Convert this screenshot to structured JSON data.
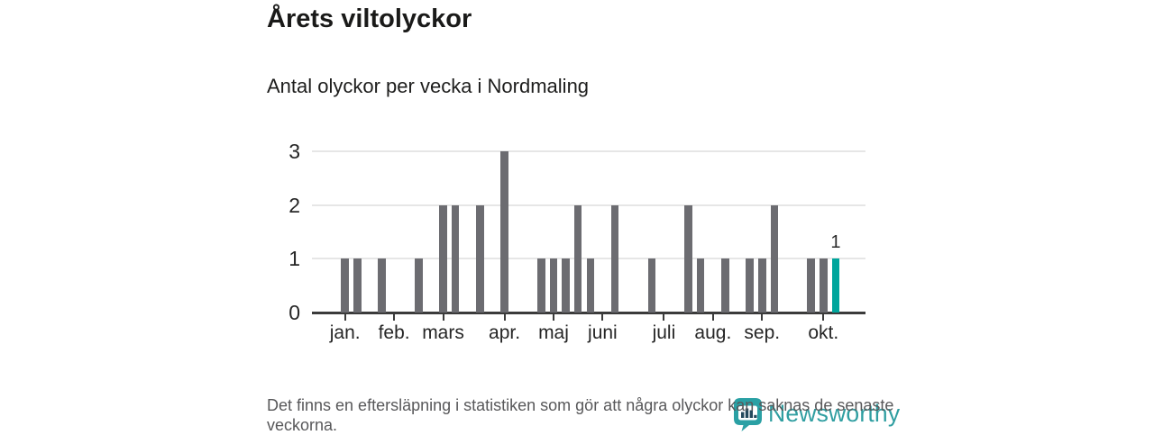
{
  "header": {
    "title": "Årets viltolyckor",
    "subtitle": "Antal olyckor per vecka i Nordmaling"
  },
  "footer": {
    "note": "Det finns en eftersläpning i statistiken som gör att några olyckor kan saknas de senaste veckorna."
  },
  "branding": {
    "name": "Newsworthy",
    "icon": "newsworthy-pin-barchart-logo",
    "text_color": "#2f9ea1",
    "icon_color": "#2aa0a4"
  },
  "chart_data": {
    "type": "bar",
    "title": "Årets viltolyckor",
    "subtitle": "Antal olyckor per vecka i Nordmaling",
    "x_unit": "vecka (week of year)",
    "weeks": [
      1,
      2,
      3,
      4,
      5,
      6,
      7,
      8,
      9,
      10,
      11,
      12,
      13,
      14,
      15,
      16,
      17,
      18,
      19,
      20,
      21,
      22,
      23,
      24,
      25,
      26,
      27,
      28,
      29,
      30,
      31,
      32,
      33,
      34,
      35,
      36,
      37,
      38,
      39,
      40,
      41
    ],
    "values": [
      1,
      1,
      0,
      1,
      0,
      0,
      1,
      0,
      2,
      2,
      0,
      2,
      0,
      3,
      0,
      0,
      1,
      1,
      1,
      2,
      1,
      0,
      2,
      0,
      0,
      1,
      0,
      0,
      2,
      1,
      0,
      1,
      0,
      1,
      1,
      2,
      0,
      0,
      1,
      1,
      1
    ],
    "highlight": {
      "week": 41,
      "value": 1,
      "label": "1"
    },
    "y_ticks": [
      0,
      1,
      2,
      3
    ],
    "ylim": [
      0,
      3
    ],
    "xlim_weeks": [
      1,
      43
    ],
    "grid": "horizontal",
    "legend": "none",
    "month_ticks": [
      {
        "label": "jan.",
        "week": 1
      },
      {
        "label": "feb.",
        "week": 5
      },
      {
        "label": "mars",
        "week": 9
      },
      {
        "label": "apr.",
        "week": 14
      },
      {
        "label": "maj",
        "week": 18
      },
      {
        "label": "juni",
        "week": 22
      },
      {
        "label": "juli",
        "week": 27
      },
      {
        "label": "aug.",
        "week": 31
      },
      {
        "label": "sep.",
        "week": 35
      },
      {
        "label": "okt.",
        "week": 40
      }
    ],
    "colors": {
      "bar": "#6c6c71",
      "highlight": "#00a59c"
    }
  }
}
